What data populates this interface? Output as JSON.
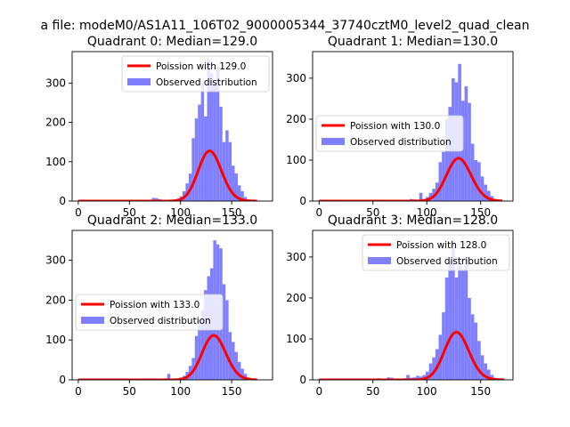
{
  "figure": {
    "suptitle": "a file: modeM0/AS1A11_106T02_9000005344_37740cztM0_level2_quad_clean"
  },
  "colors": {
    "curve": "#ff0000",
    "bars": "#8080ff",
    "axis": "#000000"
  },
  "chart_data": [
    {
      "type": "bar",
      "title": "Quadrant 0: Median=129.0",
      "xlabel": "",
      "ylabel": "",
      "xlim": [
        -6,
        190
      ],
      "ylim": [
        0,
        380
      ],
      "xticks": [
        0,
        50,
        100,
        150
      ],
      "yticks": [
        0,
        100,
        200,
        300
      ],
      "legend_position": "upper-right",
      "series": [
        {
          "name": "Poission with 129.0",
          "kind": "line",
          "lambda": 129.0,
          "x_range": [
            0,
            175
          ]
        },
        {
          "name": "Observed distribution",
          "kind": "histogram",
          "bin_width": 3,
          "bins": [
            [
              0,
              1
            ],
            [
              3,
              1
            ],
            [
              6,
              1
            ],
            [
              9,
              1
            ],
            [
              12,
              1
            ],
            [
              15,
              1
            ],
            [
              18,
              1
            ],
            [
              21,
              1
            ],
            [
              24,
              1
            ],
            [
              27,
              1
            ],
            [
              30,
              1
            ],
            [
              33,
              1
            ],
            [
              36,
              1
            ],
            [
              39,
              1
            ],
            [
              42,
              1
            ],
            [
              45,
              1
            ],
            [
              48,
              1
            ],
            [
              51,
              1
            ],
            [
              54,
              1
            ],
            [
              57,
              1
            ],
            [
              60,
              1
            ],
            [
              63,
              1
            ],
            [
              66,
              1
            ],
            [
              69,
              1
            ],
            [
              72,
              8
            ],
            [
              75,
              7
            ],
            [
              78,
              5
            ],
            [
              81,
              3
            ],
            [
              84,
              2
            ],
            [
              87,
              1
            ],
            [
              90,
              2
            ],
            [
              93,
              3
            ],
            [
              96,
              6
            ],
            [
              99,
              12
            ],
            [
              102,
              25
            ],
            [
              105,
              45
            ],
            [
              108,
              70
            ],
            [
              111,
              160
            ],
            [
              114,
              210
            ],
            [
              117,
              245
            ],
            [
              120,
              300
            ],
            [
              123,
              215
            ],
            [
              126,
              360
            ],
            [
              129,
              325
            ],
            [
              132,
              300
            ],
            [
              135,
              340
            ],
            [
              138,
              240
            ],
            [
              141,
              150
            ],
            [
              144,
              180
            ],
            [
              147,
              150
            ],
            [
              150,
              90
            ],
            [
              153,
              70
            ],
            [
              156,
              40
            ],
            [
              159,
              25
            ],
            [
              162,
              10
            ],
            [
              165,
              4
            ],
            [
              168,
              2
            ]
          ]
        }
      ]
    },
    {
      "type": "bar",
      "title": "Quadrant 1: Median=130.0",
      "xlabel": "",
      "ylabel": "",
      "xlim": [
        -6,
        180
      ],
      "ylim": [
        0,
        365
      ],
      "xticks": [
        0,
        50,
        100,
        150
      ],
      "yticks": [
        0,
        100,
        200,
        300
      ],
      "legend_position": "center-left",
      "series": [
        {
          "name": "Poission with 130.0",
          "kind": "line",
          "lambda": 130.0,
          "x_range": [
            0,
            170
          ]
        },
        {
          "name": "Observed distribution",
          "kind": "histogram",
          "bin_width": 3,
          "bins": [
            [
              0,
              1
            ],
            [
              3,
              1
            ],
            [
              6,
              1
            ],
            [
              9,
              1
            ],
            [
              12,
              1
            ],
            [
              15,
              1
            ],
            [
              18,
              1
            ],
            [
              21,
              1
            ],
            [
              24,
              1
            ],
            [
              27,
              1
            ],
            [
              30,
              1
            ],
            [
              33,
              1
            ],
            [
              36,
              1
            ],
            [
              39,
              1
            ],
            [
              42,
              1
            ],
            [
              45,
              1
            ],
            [
              48,
              1
            ],
            [
              51,
              1
            ],
            [
              54,
              1
            ],
            [
              57,
              1
            ],
            [
              60,
              1
            ],
            [
              63,
              1
            ],
            [
              66,
              1
            ],
            [
              69,
              1
            ],
            [
              72,
              2
            ],
            [
              75,
              2
            ],
            [
              78,
              2
            ],
            [
              81,
              2
            ],
            [
              84,
              5
            ],
            [
              87,
              4
            ],
            [
              90,
              3
            ],
            [
              93,
              20
            ],
            [
              96,
              5
            ],
            [
              99,
              10
            ],
            [
              102,
              20
            ],
            [
              105,
              30
            ],
            [
              108,
              45
            ],
            [
              111,
              95
            ],
            [
              114,
              120
            ],
            [
              117,
              200
            ],
            [
              120,
              230
            ],
            [
              123,
              300
            ],
            [
              126,
              290
            ],
            [
              129,
              335
            ],
            [
              132,
              245
            ],
            [
              135,
              280
            ],
            [
              138,
              240
            ],
            [
              141,
              140
            ],
            [
              144,
              100
            ],
            [
              147,
              95
            ],
            [
              150,
              60
            ],
            [
              153,
              40
            ],
            [
              156,
              25
            ],
            [
              159,
              12
            ],
            [
              162,
              5
            ],
            [
              165,
              2
            ]
          ]
        }
      ]
    },
    {
      "type": "bar",
      "title": "Quadrant 2: Median=133.0",
      "xlabel": "",
      "ylabel": "",
      "xlim": [
        -6,
        190
      ],
      "ylim": [
        0,
        375
      ],
      "xticks": [
        0,
        50,
        100,
        150
      ],
      "yticks": [
        0,
        100,
        200,
        300
      ],
      "legend_position": "center-left",
      "series": [
        {
          "name": "Poission with 133.0",
          "kind": "line",
          "lambda": 133.0,
          "x_range": [
            0,
            175
          ]
        },
        {
          "name": "Observed distribution",
          "kind": "histogram",
          "bin_width": 3,
          "bins": [
            [
              0,
              1
            ],
            [
              3,
              1
            ],
            [
              6,
              1
            ],
            [
              9,
              1
            ],
            [
              12,
              1
            ],
            [
              15,
              1
            ],
            [
              18,
              1
            ],
            [
              21,
              1
            ],
            [
              24,
              1
            ],
            [
              27,
              1
            ],
            [
              30,
              1
            ],
            [
              33,
              1
            ],
            [
              36,
              1
            ],
            [
              39,
              1
            ],
            [
              42,
              1
            ],
            [
              45,
              1
            ],
            [
              48,
              1
            ],
            [
              51,
              1
            ],
            [
              54,
              1
            ],
            [
              57,
              1
            ],
            [
              60,
              1
            ],
            [
              63,
              1
            ],
            [
              66,
              1
            ],
            [
              69,
              1
            ],
            [
              72,
              2
            ],
            [
              75,
              2
            ],
            [
              78,
              2
            ],
            [
              81,
              2
            ],
            [
              84,
              4
            ],
            [
              87,
              15
            ],
            [
              90,
              3
            ],
            [
              93,
              2
            ],
            [
              96,
              3
            ],
            [
              99,
              6
            ],
            [
              102,
              10
            ],
            [
              105,
              20
            ],
            [
              108,
              35
            ],
            [
              111,
              55
            ],
            [
              114,
              110
            ],
            [
              117,
              150
            ],
            [
              120,
              175
            ],
            [
              123,
              225
            ],
            [
              126,
              260
            ],
            [
              129,
              280
            ],
            [
              132,
              350
            ],
            [
              135,
              340
            ],
            [
              138,
              330
            ],
            [
              141,
              240
            ],
            [
              144,
              200
            ],
            [
              147,
              120
            ],
            [
              150,
              95
            ],
            [
              153,
              70
            ],
            [
              156,
              45
            ],
            [
              159,
              28
            ],
            [
              162,
              15
            ],
            [
              165,
              6
            ],
            [
              168,
              3
            ]
          ]
        }
      ]
    },
    {
      "type": "bar",
      "title": "Quadrant 3: Median=128.0",
      "xlabel": "",
      "ylabel": "",
      "xlim": [
        -6,
        180
      ],
      "ylim": [
        0,
        365
      ],
      "xticks": [
        0,
        50,
        100,
        150
      ],
      "yticks": [
        0,
        100,
        200,
        300
      ],
      "legend_position": "upper-right",
      "series": [
        {
          "name": "Poission with 128.0",
          "kind": "line",
          "lambda": 128.0,
          "x_range": [
            0,
            172
          ]
        },
        {
          "name": "Observed distribution",
          "kind": "histogram",
          "bin_width": 3,
          "bins": [
            [
              0,
              1
            ],
            [
              3,
              1
            ],
            [
              6,
              1
            ],
            [
              9,
              1
            ],
            [
              12,
              1
            ],
            [
              15,
              1
            ],
            [
              18,
              1
            ],
            [
              21,
              1
            ],
            [
              24,
              1
            ],
            [
              27,
              1
            ],
            [
              30,
              1
            ],
            [
              33,
              1
            ],
            [
              36,
              1
            ],
            [
              39,
              1
            ],
            [
              42,
              1
            ],
            [
              45,
              1
            ],
            [
              48,
              1
            ],
            [
              51,
              1
            ],
            [
              54,
              4
            ],
            [
              57,
              1
            ],
            [
              60,
              2
            ],
            [
              63,
              6
            ],
            [
              66,
              5
            ],
            [
              69,
              2
            ],
            [
              72,
              3
            ],
            [
              75,
              2
            ],
            [
              78,
              4
            ],
            [
              81,
              12
            ],
            [
              84,
              5
            ],
            [
              87,
              6
            ],
            [
              90,
              10
            ],
            [
              93,
              8
            ],
            [
              96,
              12
            ],
            [
              99,
              20
            ],
            [
              102,
              40
            ],
            [
              105,
              55
            ],
            [
              108,
              75
            ],
            [
              111,
              110
            ],
            [
              114,
              165
            ],
            [
              117,
              250
            ],
            [
              120,
              290
            ],
            [
              123,
              340
            ],
            [
              126,
              250
            ],
            [
              129,
              300
            ],
            [
              132,
              270
            ],
            [
              135,
              300
            ],
            [
              138,
              200
            ],
            [
              141,
              160
            ],
            [
              144,
              140
            ],
            [
              147,
              95
            ],
            [
              150,
              60
            ],
            [
              153,
              40
            ],
            [
              156,
              25
            ],
            [
              159,
              12
            ],
            [
              162,
              5
            ],
            [
              165,
              2
            ]
          ]
        }
      ]
    }
  ]
}
